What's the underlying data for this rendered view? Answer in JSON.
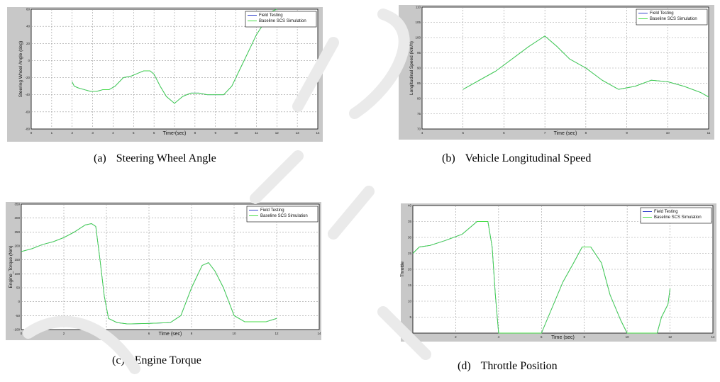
{
  "chart_data": [
    {
      "id": "a",
      "type": "line",
      "caption_tag": "(a)",
      "caption": "Steering Wheel Angle",
      "xlabel": "Time (sec)",
      "ylabel": "Steering Wheel Angle (deg)",
      "xlim": [
        0,
        14
      ],
      "ylim": [
        -80,
        60
      ],
      "xticks": [
        "0",
        "1",
        "2",
        "3",
        "4",
        "5",
        "6",
        "7",
        "8",
        "9",
        "10",
        "11",
        "12",
        "13",
        "14"
      ],
      "yticks": [
        "-80",
        "-60",
        "-40",
        "-20",
        "0",
        "20",
        "40",
        "60"
      ],
      "grid": true,
      "legend_position": "top-right",
      "legend": [
        "Field Testing",
        "Baseline SCS Simulation"
      ],
      "series": [
        {
          "name": "Field Testing",
          "color": "#3344cc",
          "x": [
            2,
            2.1,
            2.3,
            2.6,
            2.9,
            3.2,
            3.5,
            3.8,
            4.1,
            4.5,
            4.9,
            5.2,
            5.5,
            5.8,
            6,
            6.3,
            6.6,
            7,
            7.4,
            7.8,
            8.2,
            8.6,
            9,
            9.4,
            9.8,
            10.2,
            10.6,
            11,
            11.4,
            11.8,
            12
          ],
          "y": [
            -25,
            -30,
            -32,
            -34,
            -36,
            -36,
            -34,
            -34,
            -30,
            -20,
            -18,
            -15,
            -12,
            -12,
            -16,
            -30,
            -42,
            -50,
            -42,
            -38,
            -38,
            -40,
            -40,
            -40,
            -30,
            -10,
            10,
            30,
            45,
            58,
            60
          ]
        },
        {
          "name": "Baseline SCS Simulation",
          "color": "#44dd44",
          "x": [
            2,
            2.1,
            2.3,
            2.6,
            2.9,
            3.2,
            3.5,
            3.8,
            4.1,
            4.5,
            4.9,
            5.2,
            5.5,
            5.8,
            6,
            6.3,
            6.6,
            7,
            7.4,
            7.8,
            8.2,
            8.6,
            9,
            9.4,
            9.8,
            10.2,
            10.6,
            11,
            11.4,
            11.8,
            12
          ],
          "y": [
            -25,
            -30,
            -32,
            -34,
            -36,
            -36,
            -34,
            -34,
            -30,
            -20,
            -18,
            -15,
            -12,
            -12,
            -16,
            -30,
            -42,
            -50,
            -42,
            -38,
            -38,
            -40,
            -40,
            -40,
            -30,
            -10,
            10,
            30,
            45,
            58,
            60
          ]
        }
      ]
    },
    {
      "id": "b",
      "type": "line",
      "caption_tag": "(b)",
      "caption": "Vehicle Longitudinal Speed",
      "xlabel": "Time (sec)",
      "ylabel": "Longitudinal Speed (km/h)",
      "xlim": [
        4,
        11
      ],
      "ylim": [
        70,
        110
      ],
      "xticks": [
        "4",
        "5",
        "6",
        "7",
        "8",
        "9",
        "10",
        "11"
      ],
      "yticks": [
        "70",
        "75",
        "80",
        "85",
        "90",
        "95",
        "100",
        "105",
        "110"
      ],
      "grid": true,
      "legend_position": "top-right",
      "legend": [
        "Field Testing",
        "Baseline SCS Simulation"
      ],
      "series": [
        {
          "name": "Field Testing",
          "color": "#3344cc",
          "x": [
            5,
            5.4,
            5.8,
            6.2,
            6.6,
            7,
            7.3,
            7.6,
            8,
            8.4,
            8.8,
            9.2,
            9.6,
            10,
            10.4,
            10.8,
            11
          ],
          "y": [
            83,
            86,
            89,
            93,
            97,
            100.5,
            97,
            93,
            90,
            86,
            83,
            84,
            86,
            85.5,
            84,
            82,
            80.5
          ]
        },
        {
          "name": "Baseline SCS Simulation",
          "color": "#44dd44",
          "x": [
            5,
            5.4,
            5.8,
            6.2,
            6.6,
            7,
            7.3,
            7.6,
            8,
            8.4,
            8.8,
            9.2,
            9.6,
            10,
            10.4,
            10.8,
            11
          ],
          "y": [
            83,
            86,
            89,
            93,
            97,
            100.5,
            97,
            93,
            90,
            86,
            83,
            84,
            86,
            85.5,
            84,
            82,
            80.5
          ]
        }
      ]
    },
    {
      "id": "c",
      "type": "line",
      "caption_tag": "(c)",
      "caption": "Engine Torque",
      "xlabel": "Time (sec)",
      "ylabel": "Engine_Torque (Nm)",
      "xlim": [
        0,
        14
      ],
      "ylim": [
        -100,
        350
      ],
      "xticks": [
        "0",
        "2",
        "4",
        "6",
        "8",
        "10",
        "12",
        "14"
      ],
      "yticks": [
        "-100",
        "-50",
        "0",
        "50",
        "100",
        "150",
        "200",
        "250",
        "300",
        "350"
      ],
      "grid": true,
      "legend_position": "top-right",
      "legend": [
        "Field Testing",
        "Baseline SCS Simulation"
      ],
      "series": [
        {
          "name": "Field Testing",
          "color": "#3344cc",
          "x": [
            0,
            0.5,
            1,
            1.5,
            2,
            2.5,
            3,
            3.3,
            3.5,
            3.7,
            3.9,
            4.1,
            4.5,
            5,
            6,
            7,
            7.5,
            8,
            8.5,
            8.8,
            9.1,
            9.5,
            10,
            10.5,
            11,
            11.5,
            12
          ],
          "y": [
            180,
            190,
            205,
            215,
            230,
            250,
            275,
            280,
            270,
            150,
            20,
            -60,
            -75,
            -80,
            -78,
            -75,
            -50,
            50,
            130,
            140,
            110,
            50,
            -50,
            -72,
            -72,
            -72,
            -60
          ]
        },
        {
          "name": "Baseline SCS Simulation",
          "color": "#44dd44",
          "x": [
            0,
            0.5,
            1,
            1.5,
            2,
            2.5,
            3,
            3.3,
            3.5,
            3.7,
            3.9,
            4.1,
            4.5,
            5,
            6,
            7,
            7.5,
            8,
            8.5,
            8.8,
            9.1,
            9.5,
            10,
            10.5,
            11,
            11.5,
            12
          ],
          "y": [
            180,
            190,
            205,
            215,
            230,
            250,
            275,
            280,
            270,
            150,
            20,
            -60,
            -75,
            -80,
            -78,
            -75,
            -50,
            50,
            130,
            140,
            110,
            50,
            -50,
            -72,
            -72,
            -72,
            -60
          ]
        }
      ]
    },
    {
      "id": "d",
      "type": "line",
      "caption_tag": "(d)",
      "caption": "Throttle Position",
      "xlabel": "Time (sec)",
      "ylabel": "Throttle",
      "xlim": [
        0,
        14
      ],
      "ylim": [
        0,
        40
      ],
      "xticks": [
        "0",
        "2",
        "4",
        "6",
        "8",
        "10",
        "12",
        "14"
      ],
      "yticks": [
        "0",
        "5",
        "10",
        "15",
        "20",
        "25",
        "30",
        "35",
        "40"
      ],
      "grid": true,
      "legend_position": "top-right",
      "legend": [
        "Field Testing",
        "Baseline SCS Simulation"
      ],
      "series": [
        {
          "name": "Field Testing",
          "color": "#3344cc",
          "x": [
            0,
            0.3,
            0.8,
            1.5,
            2.3,
            3,
            3.5,
            3.7,
            3.85,
            4,
            6,
            6.5,
            7,
            7.5,
            7.9,
            8.3,
            8.8,
            9.2,
            9.7,
            10,
            11.4,
            11.6,
            11.9,
            12
          ],
          "y": [
            25,
            27,
            27.5,
            29,
            31,
            35,
            35,
            27,
            12,
            0,
            0,
            8,
            16,
            22,
            27,
            27,
            22,
            12,
            4,
            0,
            0,
            5,
            9,
            14
          ]
        },
        {
          "name": "Baseline SCS Simulation",
          "color": "#44dd44",
          "x": [
            0,
            0.3,
            0.8,
            1.5,
            2.3,
            3,
            3.5,
            3.7,
            3.85,
            4,
            6,
            6.5,
            7,
            7.5,
            7.9,
            8.3,
            8.8,
            9.2,
            9.7,
            10,
            11.4,
            11.6,
            11.9,
            12
          ],
          "y": [
            25,
            27,
            27.5,
            29,
            31,
            35,
            35,
            27,
            12,
            0,
            0,
            8,
            16,
            22,
            27,
            27,
            22,
            12,
            4,
            0,
            0,
            5,
            9,
            14
          ]
        }
      ]
    }
  ]
}
